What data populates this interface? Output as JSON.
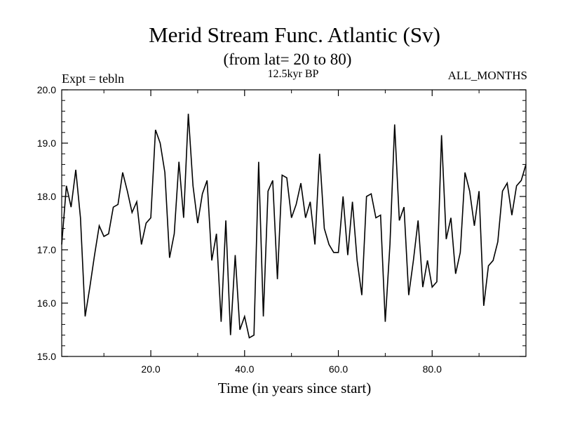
{
  "chart_data": {
    "type": "line",
    "title": "Merid Stream Func. Atlantic (Sv)",
    "subtitle": "(from lat= 20 to 80)",
    "annotations": {
      "left": "Expt = tebln",
      "center": "12.5kyr BP",
      "right": "ALL_MONTHS"
    },
    "xlabel": "Time (in years since start)",
    "ylabel": "",
    "xlim": [
      1,
      100
    ],
    "ylim": [
      15.0,
      20.0
    ],
    "x_ticks": [
      20,
      40,
      60,
      80
    ],
    "x_tick_labels": [
      "20.0",
      "40.0",
      "60.0",
      "80.0"
    ],
    "y_ticks": [
      15,
      16,
      17,
      18,
      19,
      20
    ],
    "y_tick_labels": [
      "15.0",
      "16.0",
      "17.0",
      "18.0",
      "19.0",
      "20.0"
    ],
    "grid": false,
    "series": [
      {
        "name": "Merid Stream Func.",
        "x": [
          1,
          2,
          3,
          4,
          5,
          6,
          7,
          8,
          9,
          10,
          11,
          12,
          13,
          14,
          15,
          16,
          17,
          18,
          19,
          20,
          21,
          22,
          23,
          24,
          25,
          26,
          27,
          28,
          29,
          30,
          31,
          32,
          33,
          34,
          35,
          36,
          37,
          38,
          39,
          40,
          41,
          42,
          43,
          44,
          45,
          46,
          47,
          48,
          49,
          50,
          51,
          52,
          53,
          54,
          55,
          56,
          57,
          58,
          59,
          60,
          61,
          62,
          63,
          64,
          65,
          66,
          67,
          68,
          69,
          70,
          71,
          72,
          73,
          74,
          75,
          76,
          77,
          78,
          79,
          80,
          81,
          82,
          83,
          84,
          85,
          86,
          87,
          88,
          89,
          90,
          91,
          92,
          93,
          94,
          95,
          96,
          97,
          98,
          99,
          100
        ],
        "values": [
          17.1,
          18.2,
          17.8,
          18.5,
          17.6,
          15.75,
          16.3,
          16.9,
          17.45,
          17.25,
          17.3,
          17.8,
          17.85,
          18.45,
          18.1,
          17.7,
          17.9,
          17.1,
          17.5,
          17.6,
          19.25,
          19.0,
          18.45,
          16.85,
          17.3,
          18.65,
          17.6,
          19.55,
          18.2,
          17.5,
          18.05,
          18.3,
          16.8,
          17.3,
          15.65,
          17.55,
          15.4,
          16.9,
          15.5,
          15.75,
          15.35,
          15.4,
          18.65,
          15.75,
          18.1,
          18.3,
          16.45,
          18.4,
          18.35,
          17.6,
          17.85,
          18.25,
          17.6,
          17.9,
          17.1,
          18.8,
          17.4,
          17.1,
          16.95,
          16.95,
          18.0,
          16.9,
          17.9,
          16.8,
          16.15,
          18.0,
          18.05,
          17.6,
          17.65,
          15.65,
          17.1,
          19.35,
          17.55,
          17.8,
          16.15,
          16.8,
          17.55,
          16.3,
          16.8,
          16.3,
          16.4,
          19.15,
          17.2,
          17.6,
          16.55,
          16.95,
          18.45,
          18.1,
          17.45,
          18.1,
          15.95,
          16.7,
          16.8,
          17.15,
          18.1,
          18.25,
          17.65,
          18.2,
          18.3,
          18.6
        ]
      }
    ]
  }
}
